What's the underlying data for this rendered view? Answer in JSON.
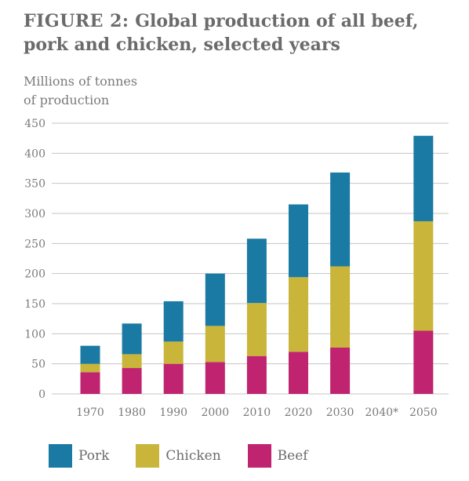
{
  "figure": {
    "lead": "FIGURE 2:",
    "rest": "Global production of all beef, pork and chicken, selected years"
  },
  "chart_data": {
    "type": "bar",
    "stacked": true,
    "title": "FIGURE 2: Global production of all beef, pork and chicken, selected years",
    "ylabel": "Millions of tonnes of production",
    "ylabel_lines": [
      "Millions of tonnes",
      "of production"
    ],
    "xlabel": "",
    "ylim": [
      0,
      450
    ],
    "yticks": [
      0,
      50,
      100,
      150,
      200,
      250,
      300,
      350,
      400,
      450
    ],
    "grid": true,
    "legend_position": "bottom",
    "categories": [
      "1970",
      "1980",
      "1990",
      "2000",
      "2010",
      "2020",
      "2030",
      "2040*",
      "2050"
    ],
    "series": [
      {
        "name": "Beef",
        "color": "#c0236f",
        "values": [
          36,
          43,
          50,
          53,
          63,
          70,
          77,
          null,
          105
        ]
      },
      {
        "name": "Chicken",
        "color": "#c9b53a",
        "values": [
          14,
          23,
          37,
          60,
          88,
          124,
          135,
          null,
          182
        ]
      },
      {
        "name": "Pork",
        "color": "#1a7aa3",
        "values": [
          30,
          51,
          67,
          87,
          107,
          121,
          156,
          null,
          142
        ]
      }
    ]
  },
  "legend": [
    {
      "label": "Pork",
      "color": "#1a7aa3"
    },
    {
      "label": "Chicken",
      "color": "#c9b53a"
    },
    {
      "label": "Beef",
      "color": "#c0236f"
    }
  ]
}
